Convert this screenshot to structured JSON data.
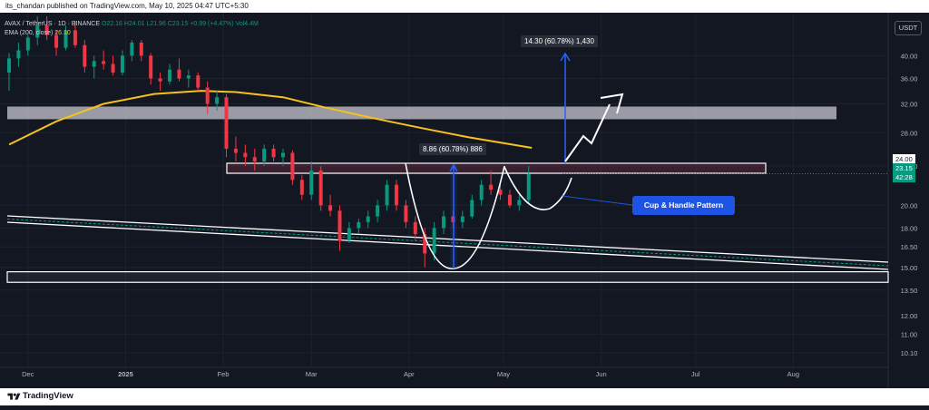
{
  "header": {
    "publisher": "its_chandan published on TradingView.com, May 10, 2025 04:47 UTC+5:30"
  },
  "legend": {
    "symbol": "AVAX / TetherUS · 1D · BINANCE",
    "o": "O22.16",
    "h": "H24.01",
    "l": "L21.96",
    "c": "C23.15",
    "change": "+0.99 (+4.47%)",
    "vol": "Vol4.4M",
    "ema_label": "EMA (200, close)",
    "ema_value": "26.10"
  },
  "currency": "USDT",
  "price_tags": {
    "last": "23.15",
    "countdown": "42:28",
    "line": "24.00"
  },
  "annotations": {
    "cup_handle": "Cup & Handle Pattern",
    "measure_cup": "8.86 (60.78%) 886",
    "measure_target": "14.30 (60.78%) 1,430"
  },
  "footer": {
    "brand": "TradingView"
  },
  "colors": {
    "up": "#089981",
    "down": "#f23645",
    "ema": "#f7c21b",
    "bg": "#131722",
    "grid": "#1e222d",
    "accent": "#1e53e5"
  },
  "chart_data": {
    "type": "candlestick",
    "symbol": "AVAX/USDT",
    "timeframe": "1D",
    "y_axis": {
      "scale": "log",
      "ticks": [
        "40.00",
        "36.00",
        "32.00",
        "28.00",
        "24.00",
        "20.00",
        "18.00",
        "16.50",
        "15.00",
        "13.50",
        "12.00",
        "11.00",
        "10.10"
      ],
      "range": [
        9.6,
        48
      ]
    },
    "x_axis": {
      "ticks": [
        "Dec",
        "2025",
        "Feb",
        "Mar",
        "Apr",
        "May",
        "Jun",
        "Jul",
        "Aug"
      ],
      "range": [
        "2024-11-25",
        "2025-08-30"
      ]
    },
    "candles": [
      {
        "t": "2024-11-25",
        "o": 37.0,
        "h": 40.5,
        "l": 34.0,
        "c": 39.5
      },
      {
        "t": "2024-11-28",
        "o": 39.5,
        "h": 42.5,
        "l": 38.0,
        "c": 41.0
      },
      {
        "t": "2024-12-01",
        "o": 41.0,
        "h": 44.0,
        "l": 40.0,
        "c": 43.5
      },
      {
        "t": "2024-12-04",
        "o": 43.5,
        "h": 48.0,
        "l": 42.0,
        "c": 46.0
      },
      {
        "t": "2024-12-07",
        "o": 46.0,
        "h": 48.0,
        "l": 43.0,
        "c": 44.0
      },
      {
        "t": "2024-12-10",
        "o": 44.0,
        "h": 45.0,
        "l": 40.0,
        "c": 41.5
      },
      {
        "t": "2024-12-13",
        "o": 41.5,
        "h": 46.0,
        "l": 41.0,
        "c": 45.0
      },
      {
        "t": "2024-12-16",
        "o": 45.0,
        "h": 47.0,
        "l": 41.5,
        "c": 42.0
      },
      {
        "t": "2024-12-19",
        "o": 42.0,
        "h": 43.0,
        "l": 37.0,
        "c": 38.0
      },
      {
        "t": "2024-12-22",
        "o": 38.0,
        "h": 40.0,
        "l": 36.0,
        "c": 39.0
      },
      {
        "t": "2024-12-25",
        "o": 39.0,
        "h": 41.0,
        "l": 37.5,
        "c": 38.5
      },
      {
        "t": "2024-12-28",
        "o": 38.5,
        "h": 40.0,
        "l": 36.5,
        "c": 37.0
      },
      {
        "t": "2024-12-31",
        "o": 37.0,
        "h": 41.0,
        "l": 36.5,
        "c": 40.0
      },
      {
        "t": "2025-01-03",
        "o": 40.0,
        "h": 43.0,
        "l": 39.0,
        "c": 42.5
      },
      {
        "t": "2025-01-06",
        "o": 42.5,
        "h": 43.0,
        "l": 39.0,
        "c": 40.0
      },
      {
        "t": "2025-01-09",
        "o": 40.0,
        "h": 40.5,
        "l": 35.0,
        "c": 36.0
      },
      {
        "t": "2025-01-12",
        "o": 36.0,
        "h": 37.0,
        "l": 34.0,
        "c": 35.5
      },
      {
        "t": "2025-01-15",
        "o": 35.5,
        "h": 38.5,
        "l": 35.0,
        "c": 37.5
      },
      {
        "t": "2025-01-18",
        "o": 37.5,
        "h": 39.5,
        "l": 35.5,
        "c": 36.0
      },
      {
        "t": "2025-01-21",
        "o": 36.0,
        "h": 37.5,
        "l": 34.5,
        "c": 36.5
      },
      {
        "t": "2025-01-24",
        "o": 36.5,
        "h": 37.0,
        "l": 34.0,
        "c": 34.5
      },
      {
        "t": "2025-01-27",
        "o": 34.5,
        "h": 35.5,
        "l": 30.5,
        "c": 32.0
      },
      {
        "t": "2025-01-30",
        "o": 32.0,
        "h": 34.0,
        "l": 31.0,
        "c": 33.0
      },
      {
        "t": "2025-02-02",
        "o": 33.0,
        "h": 33.5,
        "l": 25.0,
        "c": 26.0
      },
      {
        "t": "2025-02-05",
        "o": 26.0,
        "h": 27.5,
        "l": 24.5,
        "c": 25.5
      },
      {
        "t": "2025-02-08",
        "o": 25.5,
        "h": 26.5,
        "l": 24.0,
        "c": 25.0
      },
      {
        "t": "2025-02-11",
        "o": 25.0,
        "h": 26.0,
        "l": 23.5,
        "c": 24.5
      },
      {
        "t": "2025-02-14",
        "o": 24.5,
        "h": 26.5,
        "l": 24.0,
        "c": 26.0
      },
      {
        "t": "2025-02-17",
        "o": 26.0,
        "h": 26.5,
        "l": 24.5,
        "c": 25.0
      },
      {
        "t": "2025-02-20",
        "o": 25.0,
        "h": 26.0,
        "l": 24.0,
        "c": 25.5
      },
      {
        "t": "2025-02-23",
        "o": 25.5,
        "h": 25.8,
        "l": 22.0,
        "c": 22.5
      },
      {
        "t": "2025-02-26",
        "o": 22.5,
        "h": 23.0,
        "l": 20.5,
        "c": 21.0
      },
      {
        "t": "2025-03-01",
        "o": 21.0,
        "h": 24.5,
        "l": 20.5,
        "c": 23.5
      },
      {
        "t": "2025-03-04",
        "o": 23.5,
        "h": 24.0,
        "l": 19.5,
        "c": 20.0
      },
      {
        "t": "2025-03-07",
        "o": 20.0,
        "h": 21.0,
        "l": 19.0,
        "c": 19.5
      },
      {
        "t": "2025-03-10",
        "o": 19.5,
        "h": 20.0,
        "l": 16.2,
        "c": 17.0
      },
      {
        "t": "2025-03-13",
        "o": 17.0,
        "h": 18.5,
        "l": 16.8,
        "c": 18.0
      },
      {
        "t": "2025-03-16",
        "o": 18.0,
        "h": 18.8,
        "l": 17.5,
        "c": 18.5
      },
      {
        "t": "2025-03-19",
        "o": 18.5,
        "h": 19.5,
        "l": 18.0,
        "c": 19.0
      },
      {
        "t": "2025-03-22",
        "o": 19.0,
        "h": 20.5,
        "l": 18.5,
        "c": 20.0
      },
      {
        "t": "2025-03-25",
        "o": 20.0,
        "h": 22.5,
        "l": 19.5,
        "c": 22.0
      },
      {
        "t": "2025-03-28",
        "o": 22.0,
        "h": 22.5,
        "l": 19.5,
        "c": 20.0
      },
      {
        "t": "2025-03-31",
        "o": 20.0,
        "h": 20.5,
        "l": 18.0,
        "c": 18.5
      },
      {
        "t": "2025-04-03",
        "o": 18.5,
        "h": 19.0,
        "l": 17.0,
        "c": 17.5
      },
      {
        "t": "2025-04-06",
        "o": 17.5,
        "h": 18.0,
        "l": 15.0,
        "c": 16.0
      },
      {
        "t": "2025-04-09",
        "o": 16.0,
        "h": 18.5,
        "l": 15.5,
        "c": 18.0
      },
      {
        "t": "2025-04-12",
        "o": 18.0,
        "h": 19.5,
        "l": 17.5,
        "c": 19.0
      },
      {
        "t": "2025-04-15",
        "o": 19.0,
        "h": 19.5,
        "l": 18.0,
        "c": 18.5
      },
      {
        "t": "2025-04-18",
        "o": 18.5,
        "h": 19.5,
        "l": 18.0,
        "c": 19.0
      },
      {
        "t": "2025-04-21",
        "o": 19.0,
        "h": 21.0,
        "l": 18.8,
        "c": 20.5
      },
      {
        "t": "2025-04-24",
        "o": 20.5,
        "h": 22.5,
        "l": 20.0,
        "c": 22.0
      },
      {
        "t": "2025-04-27",
        "o": 22.0,
        "h": 23.5,
        "l": 21.0,
        "c": 21.5
      },
      {
        "t": "2025-04-30",
        "o": 21.5,
        "h": 22.0,
        "l": 20.5,
        "c": 21.0
      },
      {
        "t": "2025-05-03",
        "o": 21.0,
        "h": 21.5,
        "l": 19.8,
        "c": 20.0
      },
      {
        "t": "2025-05-06",
        "o": 20.0,
        "h": 21.0,
        "l": 19.5,
        "c": 20.5
      },
      {
        "t": "2025-05-09",
        "o": 20.5,
        "h": 24.0,
        "l": 20.2,
        "c": 23.15
      }
    ],
    "ema200": [
      {
        "t": "2024-11-25",
        "v": 26.5
      },
      {
        "t": "2024-12-10",
        "v": 29.5
      },
      {
        "t": "2024-12-25",
        "v": 32.0
      },
      {
        "t": "2025-01-10",
        "v": 33.5
      },
      {
        "t": "2025-01-25",
        "v": 34.0
      },
      {
        "t": "2025-02-05",
        "v": 33.8
      },
      {
        "t": "2025-02-20",
        "v": 33.0
      },
      {
        "t": "2025-03-05",
        "v": 31.5
      },
      {
        "t": "2025-03-20",
        "v": 30.0
      },
      {
        "t": "2025-04-05",
        "v": 28.6
      },
      {
        "t": "2025-04-20",
        "v": 27.4
      },
      {
        "t": "2025-05-10",
        "v": 26.1
      }
    ],
    "resistance_zone": [
      29.8,
      31.6
    ],
    "neckline_zone": [
      23.2,
      24.3
    ],
    "support_zone": [
      14.0,
      14.7
    ]
  }
}
